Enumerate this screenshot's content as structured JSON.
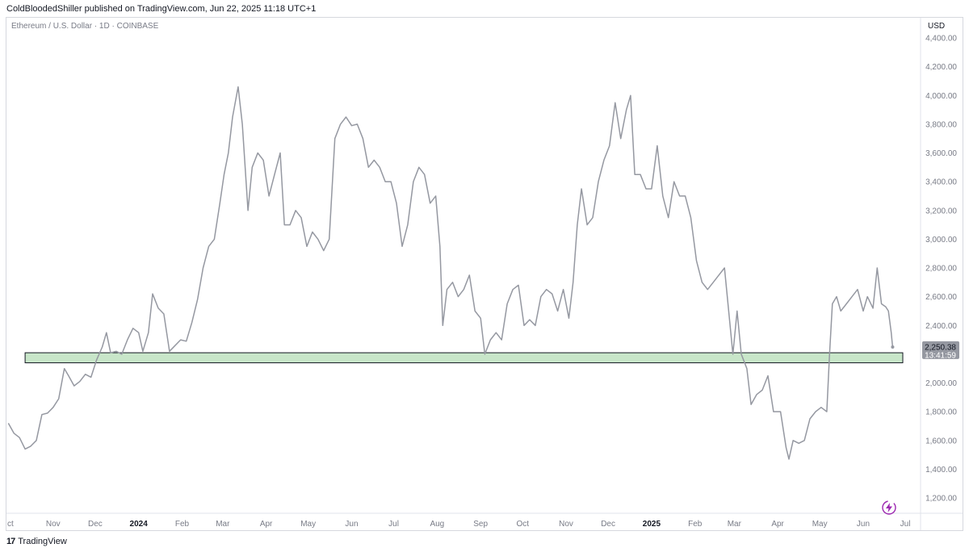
{
  "header": {
    "publisher_line": "ColdBloodedShiller published on TradingView.com, Jun 22, 2025 11:18 UTC+1"
  },
  "symbol": {
    "description": "Ethereum / U.S. Dollar · 1D · COINBASE"
  },
  "currency": "USD",
  "last_price": {
    "value": "2,250.38",
    "countdown": "13:41:59"
  },
  "footer": {
    "brand": "TradingView",
    "logo_mark": "17"
  },
  "icons": {
    "bolt": "lightning-bolt-icon"
  },
  "colors": {
    "line": "#9598a1",
    "support_zone_fill": "#c8e6c9",
    "support_zone_border": "#131722",
    "price_tag_bg": "#9598a1",
    "axis_text": "#787b86"
  },
  "chart_data": {
    "type": "line",
    "title": "Ethereum / U.S. Dollar · 1D · COINBASE",
    "ylabel": "USD",
    "xlabel": "",
    "ylim": [
      1100,
      4500
    ],
    "xlim": [
      "2023-10-01",
      "2025-07-05"
    ],
    "y_ticks": [
      1200,
      1400,
      1600,
      1800,
      2000,
      2200,
      2400,
      2600,
      2800,
      3000,
      3200,
      3400,
      3600,
      3800,
      4000,
      4200,
      4400
    ],
    "y_tick_labels": [
      "1,200.00",
      "1,400.00",
      "1,600.00",
      "1,800.00",
      "2,000.00",
      "2,200.00",
      "2,400.00",
      "2,600.00",
      "2,800.00",
      "3,000.00",
      "3,200.00",
      "3,400.00",
      "3,600.00",
      "3,800.00",
      "4,000.00",
      "4,200.00",
      "4,400.00"
    ],
    "x_ticks": [
      {
        "date": "2023-10-01",
        "label": "ct",
        "bold": false
      },
      {
        "date": "2023-11-01",
        "label": "Nov",
        "bold": false
      },
      {
        "date": "2023-12-01",
        "label": "Dec",
        "bold": false
      },
      {
        "date": "2024-01-01",
        "label": "2024",
        "bold": true
      },
      {
        "date": "2024-02-01",
        "label": "Feb",
        "bold": false
      },
      {
        "date": "2024-03-01",
        "label": "Mar",
        "bold": false
      },
      {
        "date": "2024-04-01",
        "label": "Apr",
        "bold": false
      },
      {
        "date": "2024-05-01",
        "label": "May",
        "bold": false
      },
      {
        "date": "2024-06-01",
        "label": "Jun",
        "bold": false
      },
      {
        "date": "2024-07-01",
        "label": "Jul",
        "bold": false
      },
      {
        "date": "2024-08-01",
        "label": "Aug",
        "bold": false
      },
      {
        "date": "2024-09-01",
        "label": "Sep",
        "bold": false
      },
      {
        "date": "2024-10-01",
        "label": "Oct",
        "bold": false
      },
      {
        "date": "2024-11-01",
        "label": "Nov",
        "bold": false
      },
      {
        "date": "2024-12-01",
        "label": "Dec",
        "bold": false
      },
      {
        "date": "2025-01-01",
        "label": "2025",
        "bold": true
      },
      {
        "date": "2025-02-01",
        "label": "Feb",
        "bold": false
      },
      {
        "date": "2025-03-01",
        "label": "Mar",
        "bold": false
      },
      {
        "date": "2025-04-01",
        "label": "Apr",
        "bold": false
      },
      {
        "date": "2025-05-01",
        "label": "May",
        "bold": false
      },
      {
        "date": "2025-06-01",
        "label": "Jun",
        "bold": false
      },
      {
        "date": "2025-07-01",
        "label": "Jul",
        "bold": false
      }
    ],
    "series": [
      {
        "points": [
          [
            "2023-09-30",
            1720
          ],
          [
            "2023-10-04",
            1650
          ],
          [
            "2023-10-08",
            1620
          ],
          [
            "2023-10-12",
            1540
          ],
          [
            "2023-10-16",
            1560
          ],
          [
            "2023-10-20",
            1600
          ],
          [
            "2023-10-24",
            1780
          ],
          [
            "2023-10-28",
            1790
          ],
          [
            "2023-11-01",
            1830
          ],
          [
            "2023-11-05",
            1890
          ],
          [
            "2023-11-09",
            2100
          ],
          [
            "2023-11-12",
            2050
          ],
          [
            "2023-11-16",
            1980
          ],
          [
            "2023-11-20",
            2010
          ],
          [
            "2023-11-24",
            2060
          ],
          [
            "2023-11-28",
            2040
          ],
          [
            "2023-12-02",
            2160
          ],
          [
            "2023-12-06",
            2250
          ],
          [
            "2023-12-09",
            2350
          ],
          [
            "2023-12-12",
            2210
          ],
          [
            "2023-12-16",
            2220
          ],
          [
            "2023-12-20",
            2200
          ],
          [
            "2023-12-24",
            2300
          ],
          [
            "2023-12-28",
            2380
          ],
          [
            "2024-01-01",
            2350
          ],
          [
            "2024-01-04",
            2220
          ],
          [
            "2024-01-08",
            2350
          ],
          [
            "2024-01-11",
            2620
          ],
          [
            "2024-01-15",
            2520
          ],
          [
            "2024-01-19",
            2480
          ],
          [
            "2024-01-23",
            2220
          ],
          [
            "2024-01-27",
            2260
          ],
          [
            "2024-01-31",
            2300
          ],
          [
            "2024-02-04",
            2290
          ],
          [
            "2024-02-08",
            2420
          ],
          [
            "2024-02-12",
            2580
          ],
          [
            "2024-02-16",
            2800
          ],
          [
            "2024-02-20",
            2950
          ],
          [
            "2024-02-24",
            3000
          ],
          [
            "2024-02-28",
            3250
          ],
          [
            "2024-03-02",
            3450
          ],
          [
            "2024-03-05",
            3600
          ],
          [
            "2024-03-08",
            3850
          ],
          [
            "2024-03-12",
            4060
          ],
          [
            "2024-03-15",
            3800
          ],
          [
            "2024-03-19",
            3200
          ],
          [
            "2024-03-22",
            3500
          ],
          [
            "2024-03-26",
            3600
          ],
          [
            "2024-03-30",
            3550
          ],
          [
            "2024-04-03",
            3300
          ],
          [
            "2024-04-07",
            3450
          ],
          [
            "2024-04-11",
            3600
          ],
          [
            "2024-04-14",
            3100
          ],
          [
            "2024-04-18",
            3100
          ],
          [
            "2024-04-22",
            3200
          ],
          [
            "2024-04-26",
            3150
          ],
          [
            "2024-04-30",
            2950
          ],
          [
            "2024-05-04",
            3050
          ],
          [
            "2024-05-08",
            3000
          ],
          [
            "2024-05-12",
            2920
          ],
          [
            "2024-05-16",
            3000
          ],
          [
            "2024-05-20",
            3700
          ],
          [
            "2024-05-24",
            3800
          ],
          [
            "2024-05-28",
            3850
          ],
          [
            "2024-06-01",
            3790
          ],
          [
            "2024-06-05",
            3800
          ],
          [
            "2024-06-09",
            3700
          ],
          [
            "2024-06-13",
            3500
          ],
          [
            "2024-06-17",
            3550
          ],
          [
            "2024-06-21",
            3500
          ],
          [
            "2024-06-25",
            3400
          ],
          [
            "2024-06-29",
            3400
          ],
          [
            "2024-07-03",
            3250
          ],
          [
            "2024-07-07",
            2950
          ],
          [
            "2024-07-11",
            3100
          ],
          [
            "2024-07-15",
            3400
          ],
          [
            "2024-07-19",
            3500
          ],
          [
            "2024-07-23",
            3450
          ],
          [
            "2024-07-27",
            3250
          ],
          [
            "2024-07-31",
            3300
          ],
          [
            "2024-08-03",
            2950
          ],
          [
            "2024-08-05",
            2400
          ],
          [
            "2024-08-08",
            2650
          ],
          [
            "2024-08-12",
            2700
          ],
          [
            "2024-08-16",
            2600
          ],
          [
            "2024-08-20",
            2650
          ],
          [
            "2024-08-24",
            2750
          ],
          [
            "2024-08-28",
            2500
          ],
          [
            "2024-09-01",
            2450
          ],
          [
            "2024-09-04",
            2200
          ],
          [
            "2024-09-08",
            2300
          ],
          [
            "2024-09-12",
            2350
          ],
          [
            "2024-09-16",
            2300
          ],
          [
            "2024-09-20",
            2550
          ],
          [
            "2024-09-24",
            2650
          ],
          [
            "2024-09-28",
            2680
          ],
          [
            "2024-10-02",
            2400
          ],
          [
            "2024-10-06",
            2440
          ],
          [
            "2024-10-10",
            2400
          ],
          [
            "2024-10-14",
            2600
          ],
          [
            "2024-10-18",
            2650
          ],
          [
            "2024-10-22",
            2620
          ],
          [
            "2024-10-26",
            2500
          ],
          [
            "2024-10-30",
            2650
          ],
          [
            "2024-11-03",
            2450
          ],
          [
            "2024-11-06",
            2700
          ],
          [
            "2024-11-09",
            3100
          ],
          [
            "2024-11-12",
            3350
          ],
          [
            "2024-11-16",
            3100
          ],
          [
            "2024-11-20",
            3150
          ],
          [
            "2024-11-24",
            3400
          ],
          [
            "2024-11-28",
            3550
          ],
          [
            "2024-12-02",
            3650
          ],
          [
            "2024-12-06",
            3950
          ],
          [
            "2024-12-10",
            3700
          ],
          [
            "2024-12-14",
            3900
          ],
          [
            "2024-12-17",
            4000
          ],
          [
            "2024-12-20",
            3450
          ],
          [
            "2024-12-24",
            3450
          ],
          [
            "2024-12-28",
            3350
          ],
          [
            "2025-01-01",
            3350
          ],
          [
            "2025-01-05",
            3650
          ],
          [
            "2025-01-09",
            3300
          ],
          [
            "2025-01-13",
            3150
          ],
          [
            "2025-01-17",
            3400
          ],
          [
            "2025-01-21",
            3300
          ],
          [
            "2025-01-25",
            3300
          ],
          [
            "2025-01-29",
            3150
          ],
          [
            "2025-02-02",
            2850
          ],
          [
            "2025-02-06",
            2700
          ],
          [
            "2025-02-10",
            2650
          ],
          [
            "2025-02-14",
            2700
          ],
          [
            "2025-02-18",
            2750
          ],
          [
            "2025-02-22",
            2800
          ],
          [
            "2025-02-25",
            2500
          ],
          [
            "2025-02-28",
            2200
          ],
          [
            "2025-03-03",
            2500
          ],
          [
            "2025-03-06",
            2200
          ],
          [
            "2025-03-10",
            2100
          ],
          [
            "2025-03-13",
            1850
          ],
          [
            "2025-03-17",
            1920
          ],
          [
            "2025-03-21",
            1950
          ],
          [
            "2025-03-25",
            2050
          ],
          [
            "2025-03-29",
            1800
          ],
          [
            "2025-04-03",
            1800
          ],
          [
            "2025-04-07",
            1550
          ],
          [
            "2025-04-09",
            1470
          ],
          [
            "2025-04-12",
            1600
          ],
          [
            "2025-04-16",
            1580
          ],
          [
            "2025-04-20",
            1600
          ],
          [
            "2025-04-24",
            1750
          ],
          [
            "2025-04-28",
            1800
          ],
          [
            "2025-05-02",
            1830
          ],
          [
            "2025-05-06",
            1800
          ],
          [
            "2025-05-08",
            2200
          ],
          [
            "2025-05-10",
            2550
          ],
          [
            "2025-05-13",
            2600
          ],
          [
            "2025-05-16",
            2500
          ],
          [
            "2025-05-20",
            2550
          ],
          [
            "2025-05-24",
            2600
          ],
          [
            "2025-05-28",
            2650
          ],
          [
            "2025-06-01",
            2500
          ],
          [
            "2025-06-04",
            2600
          ],
          [
            "2025-06-08",
            2520
          ],
          [
            "2025-06-11",
            2800
          ],
          [
            "2025-06-14",
            2550
          ],
          [
            "2025-06-17",
            2530
          ],
          [
            "2025-06-19",
            2500
          ],
          [
            "2025-06-21",
            2350
          ],
          [
            "2025-06-22",
            2250
          ]
        ]
      }
    ],
    "support_zone": {
      "low": 2140,
      "high": 2210,
      "from": "2023-10-12",
      "to": "2025-07-06"
    },
    "last_value": 2250.38,
    "grid": false,
    "legend": "none"
  }
}
